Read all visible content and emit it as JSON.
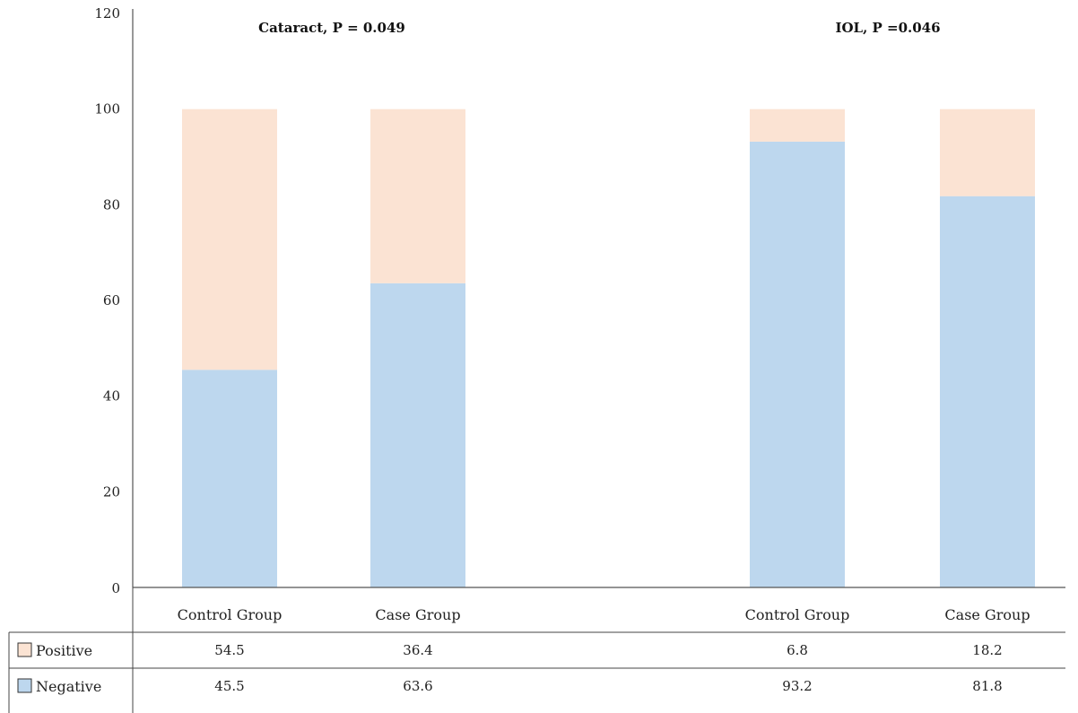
{
  "chart_data": {
    "type": "bar",
    "stacked": true,
    "ylim": [
      0,
      120
    ],
    "yticks": [
      "0",
      "20",
      "40",
      "60",
      "80",
      "100",
      "120"
    ],
    "grid": false,
    "panels": [
      {
        "title": "Cataract, P = 0.049",
        "categories": [
          "Control Group",
          "Case Group"
        ]
      },
      {
        "title": "IOL, P =0.046",
        "categories": [
          "Control Group",
          "Case Group"
        ]
      }
    ],
    "categories": [
      "Control Group",
      "Case Group",
      "Control Group",
      "Case Group"
    ],
    "series": [
      {
        "name": "Positive",
        "values": [
          54.5,
          36.4,
          6.8,
          18.2
        ],
        "labels": [
          "54.5",
          "36.4",
          "6.8",
          "18.2"
        ],
        "color": "#fbe3d3"
      },
      {
        "name": "Negative",
        "values": [
          45.5,
          63.6,
          93.2,
          81.8
        ],
        "labels": [
          "45.5",
          "63.6",
          "93.2",
          "81.8"
        ],
        "color": "#bdd7ee"
      }
    ],
    "legend": "table-left"
  }
}
